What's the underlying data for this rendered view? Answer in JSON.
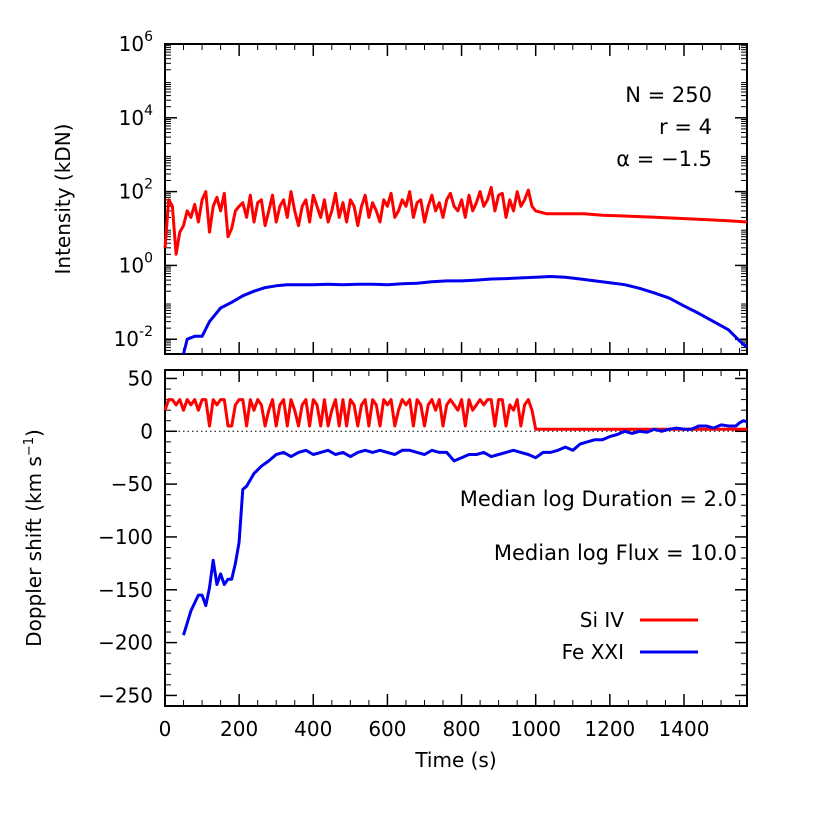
{
  "chart_data": [
    {
      "type": "line",
      "ylabel": "Intensity (kDN)",
      "yscale": "log",
      "xlim": [
        0,
        1570
      ],
      "ylim_exp": [
        -2.4,
        6
      ],
      "y_tick_exponents": [
        "-2",
        "0",
        "2",
        "4",
        "6"
      ],
      "y_tick_base": "10",
      "annotations": [
        "N = 250",
        "r = 4",
        "α = −1.5"
      ],
      "grid": false,
      "series": [
        {
          "name": "Si IV",
          "color": "#ff0000",
          "x": [
            0,
            10,
            20,
            30,
            40,
            50,
            60,
            70,
            80,
            90,
            100,
            110,
            120,
            130,
            140,
            150,
            160,
            170,
            180,
            190,
            200,
            210,
            220,
            230,
            240,
            250,
            260,
            270,
            280,
            290,
            300,
            310,
            320,
            330,
            340,
            350,
            360,
            370,
            380,
            390,
            400,
            410,
            420,
            430,
            440,
            450,
            460,
            470,
            480,
            490,
            500,
            510,
            520,
            530,
            540,
            550,
            560,
            570,
            580,
            590,
            600,
            610,
            620,
            630,
            640,
            650,
            660,
            670,
            680,
            690,
            700,
            710,
            720,
            730,
            740,
            750,
            760,
            770,
            780,
            790,
            800,
            810,
            820,
            830,
            840,
            850,
            860,
            870,
            880,
            890,
            900,
            910,
            920,
            930,
            940,
            950,
            960,
            970,
            980,
            990,
            1000,
            1030,
            1080,
            1130,
            1180,
            1230,
            1280,
            1330,
            1380,
            1430,
            1480,
            1530,
            1570
          ],
          "y": [
            3,
            60,
            40,
            2,
            8,
            12,
            30,
            20,
            45,
            15,
            60,
            100,
            8,
            40,
            70,
            30,
            90,
            6,
            10,
            30,
            40,
            50,
            20,
            80,
            15,
            50,
            60,
            12,
            30,
            80,
            15,
            40,
            60,
            20,
            100,
            30,
            12,
            40,
            60,
            15,
            80,
            40,
            20,
            60,
            15,
            30,
            90,
            20,
            50,
            15,
            60,
            40,
            12,
            40,
            80,
            20,
            50,
            30,
            15,
            60,
            40,
            90,
            20,
            30,
            60,
            40,
            100,
            20,
            50,
            60,
            15,
            40,
            80,
            30,
            50,
            20,
            60,
            90,
            40,
            30,
            60,
            20,
            80,
            30,
            50,
            100,
            40,
            60,
            130,
            30,
            80,
            90,
            20,
            60,
            30,
            100,
            40,
            60,
            110,
            40,
            30,
            25,
            25,
            25,
            23,
            22,
            21,
            20,
            19,
            18,
            17,
            16,
            15
          ]
        },
        {
          "name": "Fe XXI",
          "color": "#0000ee",
          "x": [
            50,
            60,
            80,
            100,
            120,
            150,
            180,
            210,
            240,
            270,
            300,
            330,
            360,
            400,
            440,
            480,
            520,
            560,
            600,
            640,
            680,
            720,
            760,
            800,
            840,
            880,
            920,
            960,
            1000,
            1040,
            1080,
            1120,
            1160,
            1200,
            1240,
            1280,
            1320,
            1360,
            1400,
            1440,
            1480,
            1520,
            1550,
            1570
          ],
          "y": [
            0.003,
            0.01,
            0.012,
            0.012,
            0.03,
            0.07,
            0.1,
            0.15,
            0.2,
            0.25,
            0.28,
            0.3,
            0.3,
            0.3,
            0.31,
            0.3,
            0.31,
            0.31,
            0.3,
            0.32,
            0.33,
            0.36,
            0.38,
            0.38,
            0.4,
            0.43,
            0.44,
            0.46,
            0.48,
            0.5,
            0.48,
            0.43,
            0.38,
            0.34,
            0.3,
            0.24,
            0.18,
            0.13,
            0.08,
            0.05,
            0.03,
            0.018,
            0.009,
            0.006
          ]
        }
      ]
    },
    {
      "type": "line",
      "xlabel": "Time (s)",
      "ylabel": "Doppler shift (km s",
      "ylabel_sup": "−1",
      "ylabel_end": ")",
      "xlim": [
        0,
        1570
      ],
      "ylim": [
        -260,
        58
      ],
      "x_ticks": [
        0,
        200,
        400,
        600,
        800,
        1000,
        1200,
        1400
      ],
      "y_ticks": [
        50,
        0,
        -50,
        -100,
        -150,
        -200,
        -250
      ],
      "y_tick_labels": [
        "50",
        "0",
        "−50",
        "−100",
        "−150",
        "−200",
        "−250"
      ],
      "zero_line": true,
      "annotations": [
        "Median log Duration = 2.0",
        "Median log Flux = 10.0"
      ],
      "legend_position": "bottom-right",
      "grid": false,
      "series": [
        {
          "name": "Si IV",
          "color": "#ff0000",
          "x": [
            0,
            10,
            20,
            30,
            40,
            50,
            60,
            70,
            80,
            90,
            100,
            110,
            120,
            130,
            140,
            150,
            160,
            170,
            180,
            190,
            200,
            210,
            220,
            230,
            240,
            250,
            260,
            270,
            280,
            290,
            300,
            310,
            320,
            330,
            340,
            350,
            360,
            370,
            380,
            390,
            400,
            410,
            420,
            430,
            440,
            450,
            460,
            470,
            480,
            490,
            500,
            510,
            520,
            530,
            540,
            550,
            560,
            570,
            580,
            590,
            600,
            610,
            620,
            630,
            640,
            650,
            660,
            670,
            680,
            690,
            700,
            710,
            720,
            730,
            740,
            750,
            760,
            770,
            780,
            790,
            800,
            810,
            820,
            830,
            840,
            850,
            860,
            870,
            880,
            890,
            900,
            910,
            920,
            930,
            940,
            950,
            960,
            970,
            980,
            990,
            1000,
            1100,
            1200,
            1300,
            1400,
            1500,
            1570
          ],
          "y": [
            20,
            30,
            30,
            25,
            30,
            20,
            30,
            25,
            30,
            20,
            30,
            30,
            5,
            30,
            25,
            30,
            30,
            5,
            5,
            25,
            30,
            30,
            5,
            30,
            20,
            30,
            25,
            5,
            20,
            30,
            5,
            25,
            30,
            5,
            30,
            20,
            5,
            25,
            30,
            5,
            30,
            25,
            5,
            30,
            5,
            20,
            30,
            5,
            30,
            5,
            30,
            25,
            5,
            25,
            30,
            5,
            30,
            25,
            5,
            30,
            25,
            30,
            5,
            20,
            30,
            25,
            30,
            5,
            30,
            25,
            5,
            25,
            30,
            20,
            30,
            5,
            25,
            30,
            25,
            20,
            30,
            5,
            30,
            20,
            25,
            30,
            25,
            30,
            30,
            5,
            30,
            30,
            5,
            25,
            20,
            30,
            5,
            25,
            30,
            20,
            2,
            2,
            2,
            2,
            2,
            2,
            2
          ]
        },
        {
          "name": "Fe XXI",
          "color": "#0000ee",
          "x": [
            50,
            70,
            90,
            100,
            110,
            120,
            130,
            140,
            150,
            160,
            170,
            180,
            190,
            200,
            210,
            220,
            240,
            260,
            280,
            300,
            320,
            340,
            360,
            380,
            400,
            420,
            440,
            460,
            480,
            500,
            520,
            540,
            560,
            580,
            600,
            620,
            640,
            660,
            680,
            700,
            720,
            740,
            760,
            780,
            800,
            820,
            840,
            860,
            880,
            900,
            920,
            940,
            960,
            980,
            1000,
            1020,
            1040,
            1060,
            1080,
            1100,
            1120,
            1140,
            1160,
            1180,
            1200,
            1220,
            1240,
            1260,
            1280,
            1300,
            1320,
            1340,
            1360,
            1380,
            1400,
            1420,
            1440,
            1460,
            1480,
            1500,
            1520,
            1540,
            1550,
            1560,
            1570
          ],
          "y": [
            -193,
            -170,
            -155,
            -155,
            -165,
            -148,
            -122,
            -145,
            -135,
            -145,
            -140,
            -140,
            -125,
            -105,
            -55,
            -52,
            -40,
            -33,
            -28,
            -22,
            -20,
            -24,
            -20,
            -18,
            -22,
            -20,
            -18,
            -22,
            -20,
            -24,
            -20,
            -18,
            -20,
            -18,
            -20,
            -22,
            -18,
            -18,
            -20,
            -22,
            -18,
            -20,
            -20,
            -28,
            -25,
            -22,
            -22,
            -20,
            -24,
            -22,
            -20,
            -18,
            -20,
            -22,
            -25,
            -20,
            -20,
            -18,
            -15,
            -18,
            -12,
            -10,
            -8,
            -8,
            -5,
            -3,
            0,
            -2,
            0,
            -1,
            2,
            0,
            2,
            3,
            2,
            2,
            5,
            5,
            3,
            6,
            5,
            5,
            8,
            10,
            9
          ]
        }
      ]
    }
  ],
  "legend": [
    {
      "label": "Si IV",
      "color": "#ff0000"
    },
    {
      "label": "Fe XXI",
      "color": "#0000ee"
    }
  ]
}
